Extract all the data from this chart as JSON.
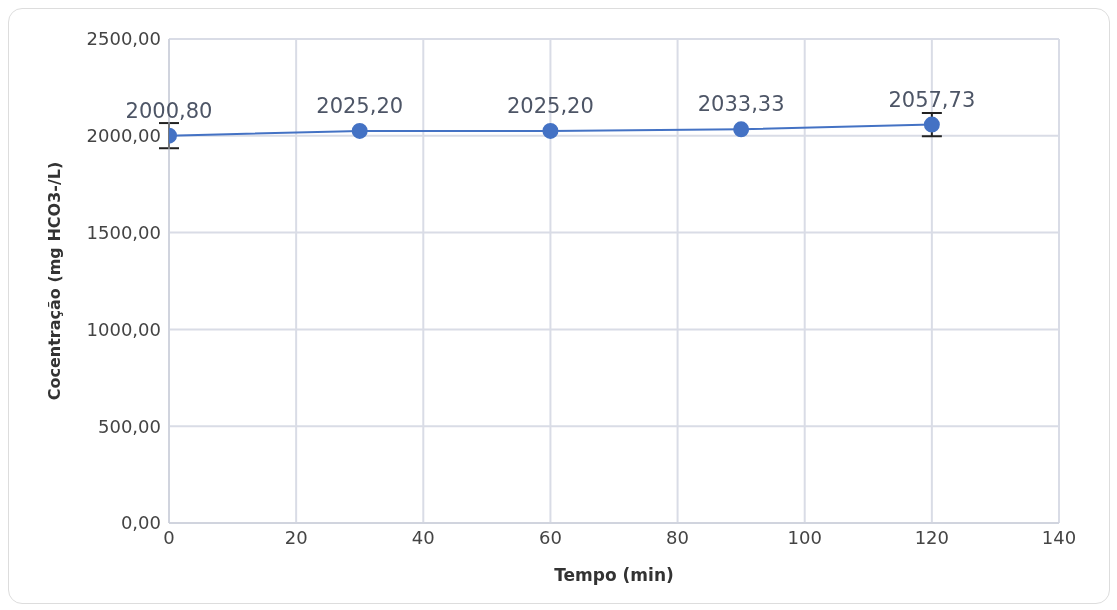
{
  "chart_data": {
    "type": "line",
    "xlabel": "Tempo (min)",
    "ylabel": "Cocentração (mg HCO3-/L)",
    "x": [
      0,
      30,
      60,
      90,
      120
    ],
    "series": [
      {
        "color": "#4472c4",
        "values": [
          2000.8,
          2025.2,
          2025.2,
          2033.33,
          2057.73
        ],
        "errors": [
          65,
          null,
          null,
          null,
          60
        ],
        "value_labels": [
          "2000,80",
          "2025,20",
          "2025,20",
          "2033,33",
          "2057,73"
        ]
      }
    ],
    "xlim": [
      0,
      140
    ],
    "xticks": [
      0,
      20,
      40,
      60,
      80,
      100,
      120,
      140
    ],
    "ylim": [
      0,
      2500
    ],
    "yticks": [
      {
        "value": 0,
        "label": "0,00"
      },
      {
        "value": 500,
        "label": "500,00"
      },
      {
        "value": 1000,
        "label": "1000,00"
      },
      {
        "value": 1500,
        "label": "1500,00"
      },
      {
        "value": 2000,
        "label": "2000,00"
      },
      {
        "value": 2500,
        "label": "2500,00"
      }
    ],
    "grid": true,
    "marker": "circle",
    "line_style": "solid",
    "legend": false
  }
}
